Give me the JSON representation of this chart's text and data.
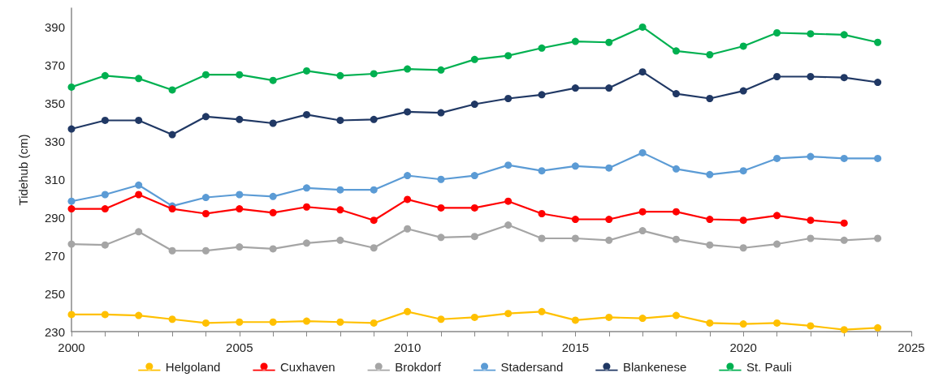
{
  "chart_data": {
    "type": "line",
    "ylabel": "Tidehub (cm)",
    "x": [
      2000,
      2001,
      2002,
      2003,
      2004,
      2005,
      2006,
      2007,
      2008,
      2009,
      2010,
      2011,
      2012,
      2013,
      2014,
      2015,
      2016,
      2017,
      2018,
      2019,
      2020,
      2021,
      2022,
      2023,
      2024
    ],
    "series": [
      {
        "name": "Helgoland",
        "color": "#ffc000",
        "values": [
          239,
          239,
          238.5,
          236.5,
          234.5,
          235,
          235,
          235.5,
          235,
          234.5,
          240.5,
          236.5,
          237.5,
          239.5,
          240.5,
          236,
          237.5,
          237,
          238.5,
          234.5,
          234,
          234.5,
          233,
          231,
          232
        ]
      },
      {
        "name": "Cuxhaven",
        "color": "#ff0000",
        "values": [
          294.5,
          294.5,
          302,
          294.5,
          292,
          294.5,
          292.5,
          295.5,
          294,
          288.5,
          299.5,
          295,
          295,
          298.5,
          292,
          289,
          289,
          293,
          293,
          289,
          288.5,
          291,
          288.5,
          287,
          null
        ]
      },
      {
        "name": "Brokdorf",
        "color": "#a5a5a5",
        "values": [
          276,
          275.5,
          282.5,
          272.5,
          272.5,
          274.5,
          273.5,
          276.5,
          278,
          274,
          284,
          279.5,
          280,
          286,
          279,
          279,
          278,
          283,
          278.5,
          275.5,
          274,
          276,
          279,
          278,
          279
        ]
      },
      {
        "name": "Stadersand",
        "color": "#5b9bd5",
        "values": [
          298.5,
          302,
          307,
          296,
          300.5,
          302,
          301,
          305.5,
          304.5,
          304.5,
          312,
          310,
          312,
          317.5,
          314.5,
          317,
          316,
          324,
          315.5,
          312.5,
          314.5,
          321,
          322,
          321,
          321
        ]
      },
      {
        "name": "Blankenese",
        "color": "#203864",
        "values": [
          336.5,
          341,
          341,
          333.5,
          343,
          341.5,
          339.5,
          344,
          341,
          341.5,
          345.5,
          345,
          349.5,
          352.5,
          354.5,
          358,
          358,
          366.5,
          355,
          352.5,
          356.5,
          364,
          364,
          363.5,
          361
        ]
      },
      {
        "name": "St. Pauli",
        "color": "#00b050",
        "values": [
          358.5,
          364.5,
          363,
          357,
          365,
          365,
          362,
          367,
          364.5,
          365.5,
          368,
          367.5,
          373,
          375,
          379,
          382.5,
          382,
          390,
          377.5,
          375.5,
          380,
          387,
          386.5,
          386,
          382
        ]
      }
    ],
    "xlim": [
      2000,
      2025
    ],
    "xticks": [
      2000,
      {
        "value": 2001,
        "label": null
      },
      {
        "value": 2002,
        "label": null
      },
      {
        "value": 2003,
        "label": null
      },
      {
        "value": 2004,
        "label": null
      },
      2005,
      {
        "value": 2006,
        "label": null
      },
      {
        "value": 2007,
        "label": null
      },
      {
        "value": 2008,
        "label": null
      },
      {
        "value": 2009,
        "label": null
      },
      2010,
      {
        "value": 2011,
        "label": null
      },
      {
        "value": 2012,
        "label": null
      },
      {
        "value": 2013,
        "label": null
      },
      {
        "value": 2014,
        "label": null
      },
      2015,
      {
        "value": 2016,
        "label": null
      },
      {
        "value": 2017,
        "label": null
      },
      {
        "value": 2018,
        "label": null
      },
      {
        "value": 2019,
        "label": null
      },
      2020,
      {
        "value": 2021,
        "label": null
      },
      {
        "value": 2022,
        "label": null
      },
      {
        "value": 2023,
        "label": null
      },
      {
        "value": 2024,
        "label": null
      },
      2025
    ],
    "ylim": [
      230,
      400
    ],
    "yticks": [
      230,
      250,
      270,
      290,
      310,
      330,
      350,
      370,
      390
    ],
    "grid": false,
    "legend": "bottom",
    "marker": "circle",
    "line_style": "solid"
  }
}
